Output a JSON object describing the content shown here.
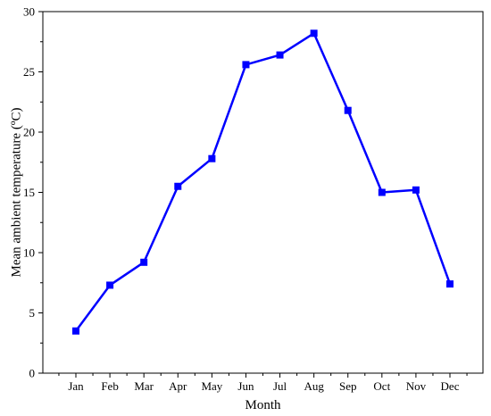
{
  "chart_data": {
    "type": "line",
    "title": "",
    "xlabel": "Month",
    "ylabel": "Mean ambient temperature (ºC)",
    "categories": [
      "Jan",
      "Feb",
      "Mar",
      "Apr",
      "May",
      "Jun",
      "Jul",
      "Aug",
      "Sep",
      "Oct",
      "Nov",
      "Dec"
    ],
    "series": [
      {
        "values": [
          3.5,
          7.3,
          9.2,
          15.5,
          17.8,
          25.6,
          26.4,
          28.2,
          21.8,
          15.0,
          15.2,
          7.4
        ],
        "color": "#0000ff",
        "marker": "square"
      }
    ],
    "ylim": [
      0,
      30
    ],
    "yticks": [
      0,
      5,
      10,
      15,
      20,
      25,
      30
    ],
    "grid": false,
    "legend": "none"
  }
}
